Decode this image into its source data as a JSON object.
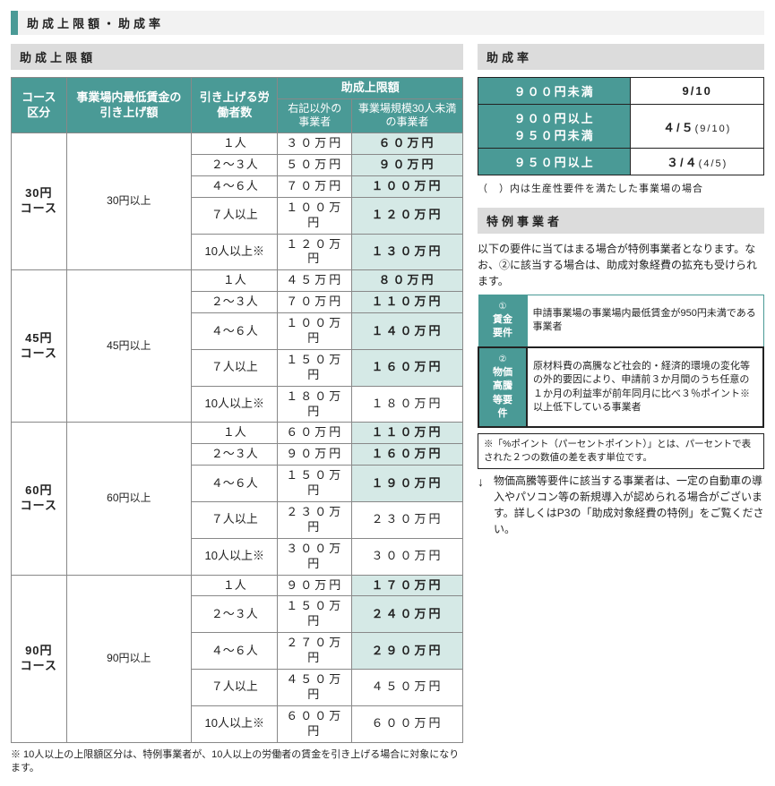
{
  "colors": {
    "teal": "#4a9a96",
    "hl": "#d5e9e6",
    "grey_bg": "#f2f2f2",
    "grey_title": "#dcdcdc"
  },
  "pageTitle": "助成上限額・助成率",
  "left": {
    "title": "助成上限額",
    "headers": {
      "col1": "コース区分",
      "col2": "事業場内最低賃金の引き上げ額",
      "col3": "引き上げる労働者数",
      "col4top": "助成上限額",
      "col4a": "右記以外の事業者",
      "col4b": "事業場規模30人未満の事業者"
    },
    "courses": [
      {
        "name": "30円コース",
        "cond": "30円以上",
        "rows": [
          {
            "n": "１人",
            "a": "３０万円",
            "b": "６０万円"
          },
          {
            "n": "２～３人",
            "a": "５０万円",
            "b": "９０万円"
          },
          {
            "n": "４～６人",
            "a": "７０万円",
            "b": "１００万円"
          },
          {
            "n": "７人以上",
            "a": "１００万円",
            "b": "１２０万円"
          },
          {
            "n": "10人以上※",
            "a": "１２０万円",
            "b": "１３０万円"
          }
        ]
      },
      {
        "name": "45円コース",
        "cond": "45円以上",
        "rows": [
          {
            "n": "１人",
            "a": "４５万円",
            "b": "８０万円"
          },
          {
            "n": "２～３人",
            "a": "７０万円",
            "b": "１１０万円"
          },
          {
            "n": "４～６人",
            "a": "１００万円",
            "b": "１４０万円"
          },
          {
            "n": "７人以上",
            "a": "１５０万円",
            "b": "１６０万円"
          },
          {
            "n": "10人以上※",
            "a": "１８０万円",
            "b": "１８０万円"
          }
        ]
      },
      {
        "name": "60円コース",
        "cond": "60円以上",
        "rows": [
          {
            "n": "１人",
            "a": "６０万円",
            "b": "１１０万円"
          },
          {
            "n": "２～３人",
            "a": "９０万円",
            "b": "１６０万円"
          },
          {
            "n": "４～６人",
            "a": "１５０万円",
            "b": "１９０万円"
          },
          {
            "n": "７人以上",
            "a": "２３０万円",
            "b": "２３０万円"
          },
          {
            "n": "10人以上※",
            "a": "３００万円",
            "b": "３００万円"
          }
        ]
      },
      {
        "name": "90円コース",
        "cond": "90円以上",
        "rows": [
          {
            "n": "１人",
            "a": "９０万円",
            "b": "１７０万円"
          },
          {
            "n": "２～３人",
            "a": "１５０万円",
            "b": "２４０万円"
          },
          {
            "n": "４～６人",
            "a": "２７０万円",
            "b": "２９０万円"
          },
          {
            "n": "７人以上",
            "a": "４５０万円",
            "b": "４５０万円"
          },
          {
            "n": "10人以上※",
            "a": "６００万円",
            "b": "６００万円"
          }
        ]
      }
    ],
    "footnote": "※ 10人以上の上限額区分は、特例事業者が、10人以上の労働者の賃金を引き上げる場合に対象になります。"
  },
  "right": {
    "rateTitle": "助成率",
    "rates": [
      {
        "label": "９００円未満",
        "value": "9/10",
        "sub": ""
      },
      {
        "label": "９００円以上９５０円未満",
        "value": "４/５",
        "sub": "(9/10)"
      },
      {
        "label": "９５０円以上",
        "value": "３/４",
        "sub": "(4/5)"
      }
    ],
    "rateNote": "（　）内は生産性要件を満たした事業場の場合",
    "specialTitle": "特例事業者",
    "specialIntro": "以下の要件に当てはまる場合が特例事業者となります。なお、②に該当する場合は、助成対象経費の拡充も受けられます。",
    "req": [
      {
        "num": "①",
        "head": "賃金要件",
        "body": "申請事業場の事業場内最低賃金が950円未満である事業者"
      },
      {
        "num": "②",
        "head": "物価高騰等要件",
        "body": "原材料費の高騰など社会的・経済的環境の変化等の外的要因により、申請前３か月間のうち任意の１か月の利益率が前年同月に比べ３％ポイント※以上低下している事業者"
      }
    ],
    "boxNote": "※「%ポイント（パーセントポイント）」とは、パーセントで表された２つの数値の差を表す単位です。",
    "arrowNote": "物価高騰等要件に該当する事業者は、一定の自動車の導入やパソコン等の新規導入が認められる場合がございます。詳しくはP3の「助成対象経費の特例」をご覧ください。"
  },
  "hlSet": {
    "30円コース": 5,
    "45円コース": 4,
    "60円コース": 3,
    "90円コース": 3
  }
}
